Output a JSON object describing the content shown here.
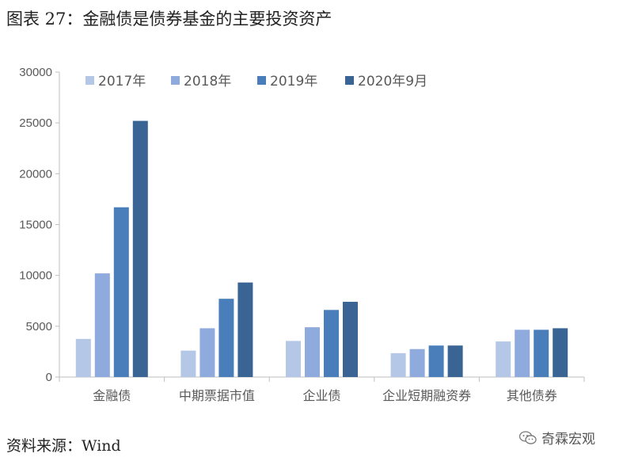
{
  "header": {
    "title": "图表 27：金融债是债券基金的主要投资资产"
  },
  "footer": {
    "source": "资料来源：Wind",
    "watermark": "奇霖宏观"
  },
  "chart_data": {
    "type": "bar",
    "title": "",
    "xlabel": "",
    "ylabel": "",
    "ylim": [
      0,
      30000
    ],
    "yticks": [
      0,
      5000,
      10000,
      15000,
      20000,
      25000,
      30000
    ],
    "grid": false,
    "legend_position": "top",
    "categories": [
      "金融债",
      "中期票据市值",
      "企业债",
      "企业短期融资券",
      "其他债券"
    ],
    "series": [
      {
        "name": "2017年",
        "color": "#b4c7e7",
        "values": [
          3750,
          2600,
          3550,
          2350,
          3500
        ]
      },
      {
        "name": "2018年",
        "color": "#8faadc",
        "values": [
          10200,
          4800,
          4900,
          2750,
          4650
        ]
      },
      {
        "name": "2019年",
        "color": "#4a7ebb",
        "values": [
          16700,
          7700,
          6600,
          3100,
          4650
        ]
      },
      {
        "name": "2020年9月",
        "color": "#3a6494",
        "values": [
          25200,
          9300,
          7400,
          3100,
          4800
        ]
      }
    ]
  }
}
